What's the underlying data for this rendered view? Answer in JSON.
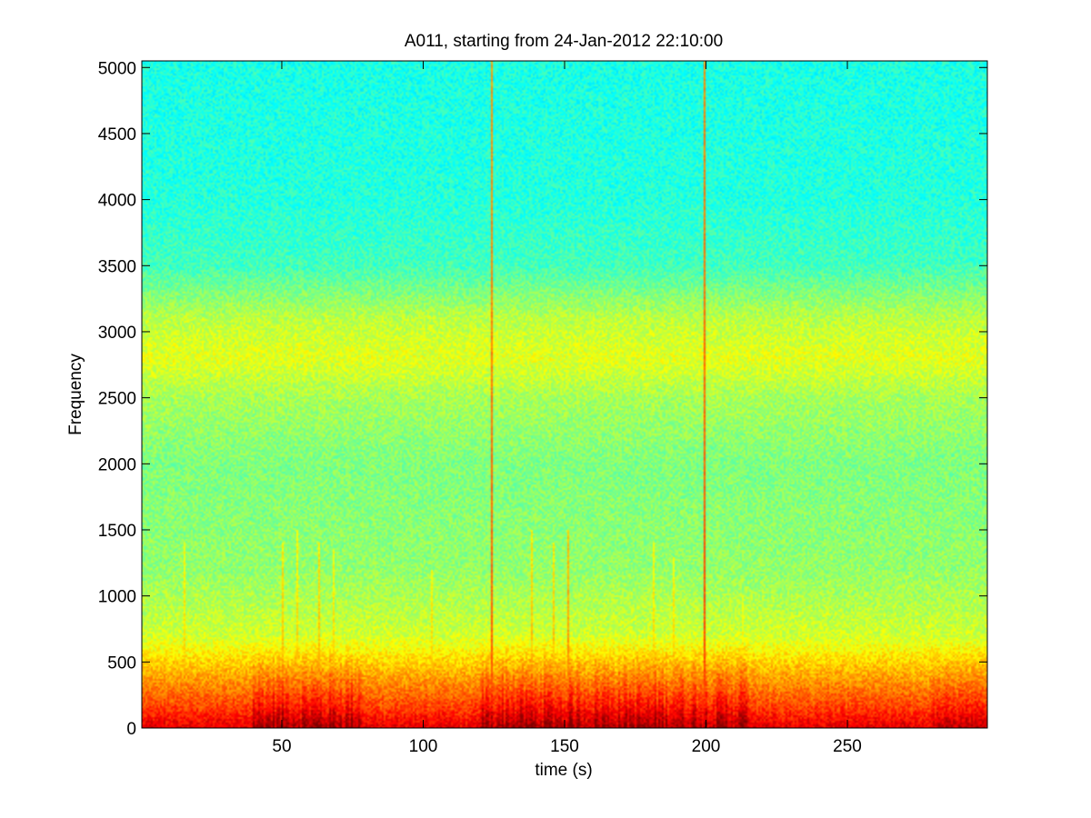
{
  "chart_data": {
    "type": "heatmap",
    "title": "A011, starting from 24-Jan-2012 22:10:00",
    "xlabel": "time (s)",
    "ylabel": "Frequency",
    "xlim": [
      0.5,
      299.5
    ],
    "ylim": [
      0,
      5050
    ],
    "x_ticks": [
      50,
      100,
      150,
      200,
      250
    ],
    "y_ticks": [
      0,
      500,
      1000,
      1500,
      2000,
      2500,
      3000,
      3500,
      4000,
      4500,
      5000
    ],
    "grid": false,
    "legend": "none",
    "colormap": "jet",
    "intensity_by_frequency": [
      {
        "freq": 0,
        "level": 0.88
      },
      {
        "freq": 150,
        "level": 0.8
      },
      {
        "freq": 400,
        "level": 0.7
      },
      {
        "freq": 700,
        "level": 0.58
      },
      {
        "freq": 1200,
        "level": 0.52
      },
      {
        "freq": 2000,
        "level": 0.5
      },
      {
        "freq": 2500,
        "level": 0.54
      },
      {
        "freq": 2800,
        "level": 0.6
      },
      {
        "freq": 3100,
        "level": 0.56
      },
      {
        "freq": 3500,
        "level": 0.44
      },
      {
        "freq": 4000,
        "level": 0.41
      },
      {
        "freq": 5050,
        "level": 0.4
      }
    ],
    "transient_events": [
      {
        "time": 15,
        "level": 0.7,
        "max_freq": 1400
      },
      {
        "time": 50,
        "level": 0.72,
        "max_freq": 1400
      },
      {
        "time": 55,
        "level": 0.7,
        "max_freq": 1500
      },
      {
        "time": 63,
        "level": 0.72,
        "max_freq": 1400
      },
      {
        "time": 68,
        "level": 0.7,
        "max_freq": 1350
      },
      {
        "time": 103,
        "level": 0.7,
        "max_freq": 1200
      },
      {
        "time": 124,
        "level": 0.8,
        "max_freq": 5050
      },
      {
        "time": 138,
        "level": 0.72,
        "max_freq": 1500
      },
      {
        "time": 146,
        "level": 0.72,
        "max_freq": 1400
      },
      {
        "time": 151,
        "level": 0.76,
        "max_freq": 1500
      },
      {
        "time": 181,
        "level": 0.7,
        "max_freq": 1400
      },
      {
        "time": 188,
        "level": 0.7,
        "max_freq": 1300
      },
      {
        "time": 199,
        "level": 0.82,
        "max_freq": 5050
      },
      {
        "time": 213,
        "level": 0.68,
        "max_freq": 1000
      }
    ],
    "low_frequency_activity": [
      {
        "time_start": 40,
        "time_end": 78,
        "level": 0.9
      },
      {
        "time_start": 120,
        "time_end": 215,
        "level": 0.9
      },
      {
        "time_start": 280,
        "time_end": 299.5,
        "level": 0.84
      }
    ]
  }
}
